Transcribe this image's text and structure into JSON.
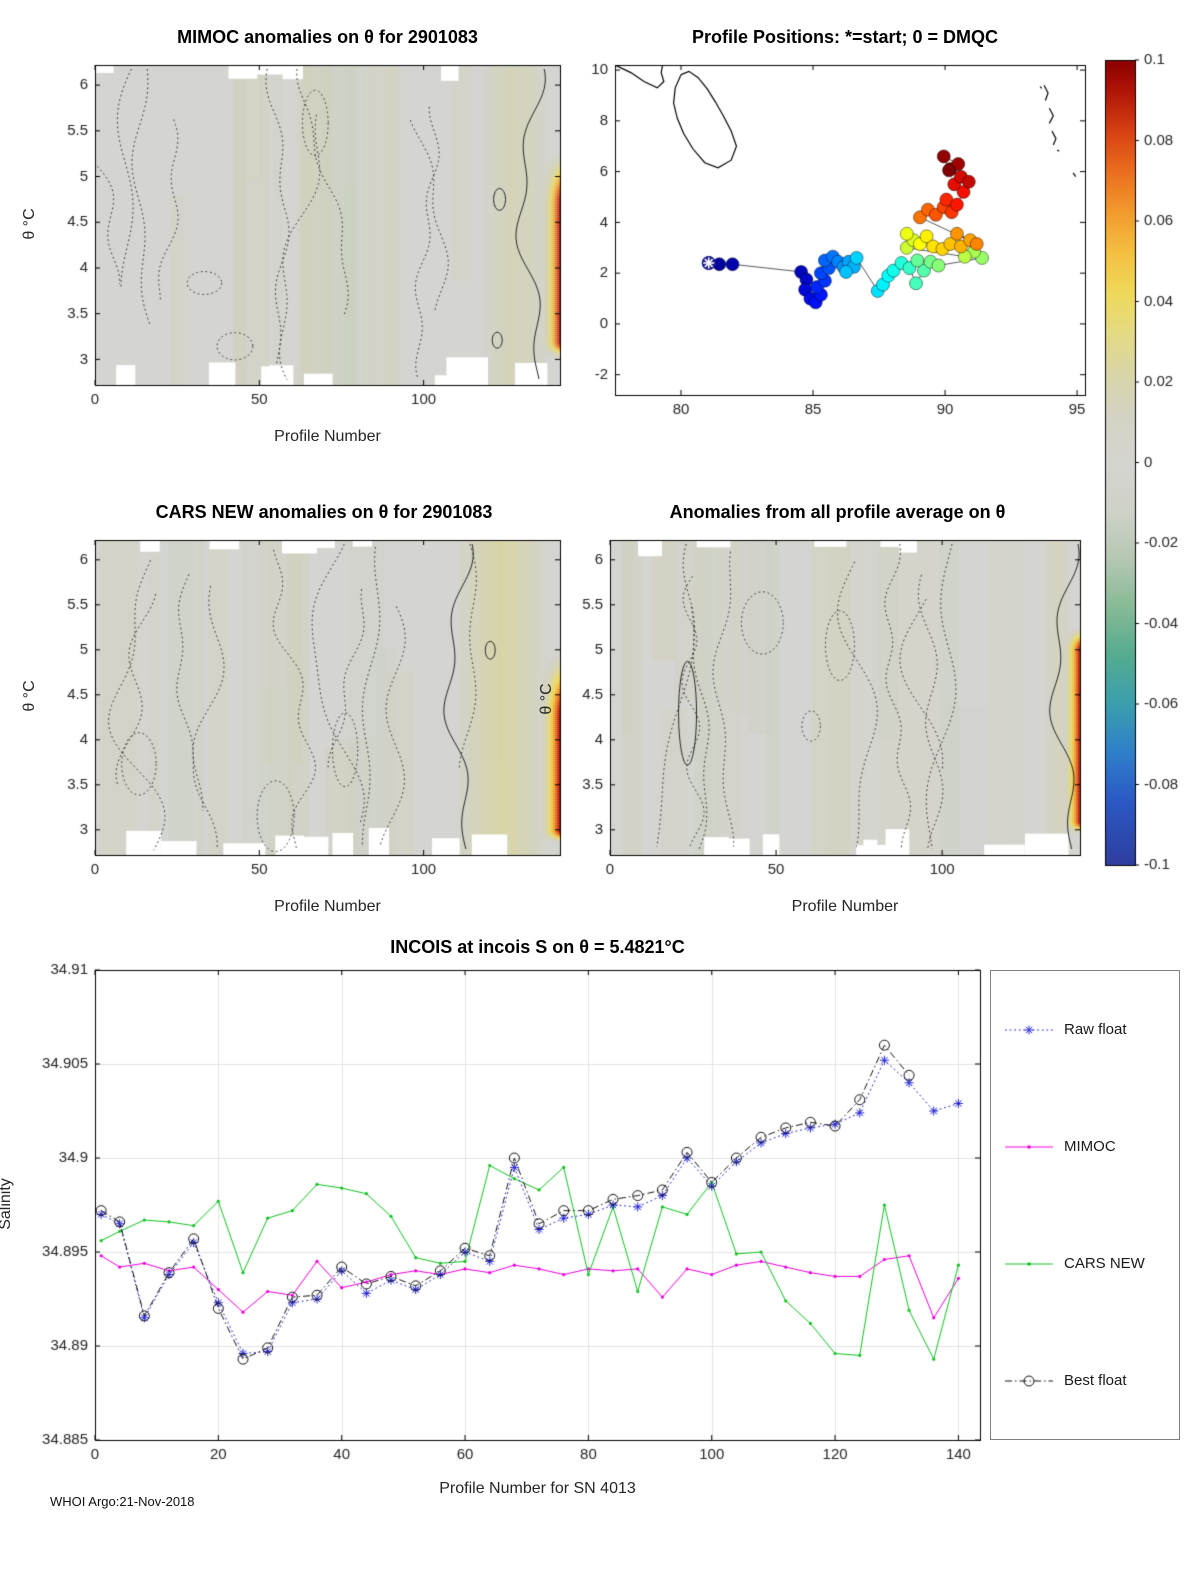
{
  "meta": {
    "footer": "WHOI Argo:21-Nov-2018"
  },
  "colorbar": {
    "min": -0.1,
    "max": 0.1,
    "tick_values": [
      0.1,
      0.08,
      0.06,
      0.04,
      0.02,
      0,
      -0.02,
      -0.04,
      -0.06,
      -0.08,
      -0.1
    ],
    "tick_labels": [
      "0.1",
      "0.08",
      "0.06",
      "0.04",
      "0.02",
      "0",
      "-0.02",
      "-0.04",
      "-0.06",
      "-0.08",
      "-0.1"
    ],
    "colormap_stops": [
      [
        0.0,
        "#2e3d9e"
      ],
      [
        0.08,
        "#2b59c4"
      ],
      [
        0.14,
        "#2f7fc9"
      ],
      [
        0.2,
        "#3a9fae"
      ],
      [
        0.26,
        "#54ab90"
      ],
      [
        0.32,
        "#86ba96"
      ],
      [
        0.38,
        "#b5c7b2"
      ],
      [
        0.44,
        "#cfd2c8"
      ],
      [
        0.5,
        "#d4d4d0"
      ],
      [
        0.56,
        "#d4d3c2"
      ],
      [
        0.61,
        "#d8d5a8"
      ],
      [
        0.66,
        "#e3da84"
      ],
      [
        0.71,
        "#efd95b"
      ],
      [
        0.76,
        "#f4c140"
      ],
      [
        0.81,
        "#f29c2d"
      ],
      [
        0.86,
        "#ea701f"
      ],
      [
        0.91,
        "#d84313"
      ],
      [
        0.96,
        "#b21607"
      ],
      [
        1.0,
        "#8c0000"
      ]
    ],
    "jet_stops": [
      [
        0,
        "#000090"
      ],
      [
        0.125,
        "#0010ff"
      ],
      [
        0.375,
        "#00ffff"
      ],
      [
        0.625,
        "#ffff00"
      ],
      [
        0.875,
        "#ff1000"
      ],
      [
        1,
        "#800000"
      ]
    ]
  },
  "panels": {
    "mimoc": {
      "title": "MIMOC anomalies on θ  for 2901083",
      "xlabel": "Profile Number",
      "ylabel": "θ °C",
      "xticks": [
        0,
        50,
        100
      ],
      "xtick_labels": [
        "0",
        "50",
        "100"
      ],
      "yticks": [
        3,
        3.5,
        4,
        4.5,
        5,
        5.5,
        6
      ],
      "ytick_labels": [
        "3",
        "3.5",
        "4",
        "4.5",
        "5",
        "5.5",
        "6"
      ],
      "x_range": [
        0,
        141.5
      ],
      "y_range": [
        2.72,
        6.22
      ]
    },
    "map": {
      "title": "Profile Positions: *=start; 0 = DMQC",
      "xticks": [
        80,
        85,
        90,
        95
      ],
      "xtick_labels": [
        "80",
        "85",
        "90",
        "95"
      ],
      "yticks": [
        -2,
        0,
        2,
        4,
        6,
        8,
        10
      ],
      "ytick_labels": [
        "-2",
        "0",
        "2",
        "4",
        "6",
        "8",
        "10"
      ],
      "x_range": [
        77.5,
        95.3
      ],
      "y_range": [
        -2.8,
        10.2
      ]
    },
    "cars": {
      "title": "CARS NEW anomalies on θ for 2901083",
      "xlabel": "Profile Number",
      "ylabel": "θ °C",
      "xticks": [
        0,
        50,
        100
      ],
      "xtick_labels": [
        "0",
        "50",
        "100"
      ],
      "yticks": [
        3,
        3.5,
        4,
        4.5,
        5,
        5.5,
        6
      ],
      "ytick_labels": [
        "3",
        "3.5",
        "4",
        "4.5",
        "5",
        "5.5",
        "6"
      ],
      "x_range": [
        0,
        141.5
      ],
      "y_range": [
        2.72,
        6.22
      ]
    },
    "avg": {
      "title": "Anomalies from all profile average on θ",
      "xlabel": "Profile Number",
      "ylabel": "θ °C",
      "xticks": [
        0,
        50,
        100
      ],
      "xtick_labels": [
        "0",
        "50",
        "100"
      ],
      "yticks": [
        3,
        3.5,
        4,
        4.5,
        5,
        5.5,
        6
      ],
      "ytick_labels": [
        "3",
        "3.5",
        "4",
        "4.5",
        "5",
        "5.5",
        "6"
      ],
      "x_range": [
        0,
        141.5
      ],
      "y_range": [
        2.72,
        6.22
      ]
    },
    "incois": {
      "title": "INCOIS at incois S on θ = 5.4821°C",
      "xlabel": "Profile Number for SN 4013",
      "ylabel": "Salinity",
      "xticks": [
        0,
        20,
        40,
        60,
        80,
        100,
        120,
        140
      ],
      "xtick_labels": [
        "0",
        "20",
        "40",
        "60",
        "80",
        "100",
        "120",
        "140"
      ],
      "yticks": [
        34.885,
        34.89,
        34.895,
        34.9,
        34.905,
        34.91
      ],
      "ytick_labels": [
        "34.885",
        "34.89",
        "34.895",
        "34.9",
        "34.905",
        "34.91"
      ],
      "x_range": [
        0,
        143.5
      ],
      "y_range": [
        34.885,
        34.91
      ]
    }
  },
  "chart_data": [
    {
      "id": "mimoc",
      "type": "heatmap",
      "title": "MIMOC anomalies on θ  for 2901083",
      "xlabel": "Profile Number",
      "ylabel": "θ °C",
      "x_range": [
        0,
        141.5
      ],
      "y_range": [
        2.72,
        6.22
      ],
      "value_range": [
        -0.1,
        0.1
      ],
      "background_value": 0,
      "features": {
        "warm_band": {
          "x0": 118,
          "x1": 137,
          "peak_value": 0.018
        },
        "stripe": {
          "x0": 137.5,
          "x1": 141.5,
          "y_core": [
            3.2,
            4.7
          ],
          "y_ext": [
            3.0,
            5.35
          ],
          "peak_value": 0.1
        }
      },
      "note": "anomaly field near 0 (gray) with dotted zero contours; strong positive anomaly (+0.1) at final profiles"
    },
    {
      "id": "map",
      "type": "scatter",
      "title": "Profile Positions: *=start; 0 = DMQC",
      "start": [
        81.05,
        2.4
      ],
      "points": [
        [
          81.05,
          2.4
        ],
        [
          81.45,
          2.35
        ],
        [
          81.95,
          2.35
        ],
        [
          84.55,
          2.05
        ],
        [
          84.75,
          1.75
        ],
        [
          84.7,
          1.35
        ],
        [
          84.9,
          1.0
        ],
        [
          85.1,
          0.85
        ],
        [
          85.3,
          1.15
        ],
        [
          85.15,
          1.45
        ],
        [
          85.45,
          1.7
        ],
        [
          85.3,
          2.0
        ],
        [
          85.6,
          2.2
        ],
        [
          85.45,
          2.5
        ],
        [
          85.75,
          2.65
        ],
        [
          85.95,
          2.45
        ],
        [
          86.15,
          2.25
        ],
        [
          86.35,
          2.45
        ],
        [
          86.55,
          2.25
        ],
        [
          86.25,
          2.05
        ],
        [
          86.65,
          2.6
        ],
        [
          87.45,
          1.3
        ],
        [
          87.65,
          1.55
        ],
        [
          87.85,
          1.9
        ],
        [
          88.05,
          2.1
        ],
        [
          88.35,
          2.4
        ],
        [
          88.65,
          2.2
        ],
        [
          88.9,
          1.6
        ],
        [
          89.2,
          2.1
        ],
        [
          88.95,
          2.5
        ],
        [
          89.45,
          2.45
        ],
        [
          89.75,
          2.3
        ],
        [
          91.4,
          2.6
        ],
        [
          91.1,
          2.85
        ],
        [
          90.75,
          2.65
        ],
        [
          88.55,
          3.0
        ],
        [
          88.8,
          3.3
        ],
        [
          88.55,
          3.55
        ],
        [
          89.05,
          3.15
        ],
        [
          89.3,
          3.45
        ],
        [
          89.55,
          3.05
        ],
        [
          89.9,
          2.95
        ],
        [
          90.2,
          3.15
        ],
        [
          90.6,
          3.05
        ],
        [
          90.95,
          3.3
        ],
        [
          90.45,
          3.55
        ],
        [
          91.2,
          3.15
        ],
        [
          89.05,
          4.2
        ],
        [
          89.35,
          4.5
        ],
        [
          89.65,
          4.3
        ],
        [
          89.95,
          4.6
        ],
        [
          90.25,
          4.4
        ],
        [
          90.05,
          4.9
        ],
        [
          90.45,
          4.7
        ],
        [
          90.7,
          5.2
        ],
        [
          90.35,
          5.5
        ],
        [
          90.6,
          5.8
        ],
        [
          90.9,
          5.6
        ],
        [
          90.2,
          6.1
        ],
        [
          90.5,
          6.3
        ],
        [
          89.95,
          6.6
        ],
        [
          90.15,
          6.05
        ]
      ],
      "coastlines": [
        [
          [
            77.5,
            10.2
          ],
          [
            78.1,
            9.9
          ],
          [
            78.6,
            9.55
          ],
          [
            79.1,
            9.3
          ],
          [
            79.35,
            9.55
          ],
          [
            79.25,
            9.9
          ],
          [
            79.3,
            10.2
          ]
        ],
        [
          [
            80.0,
            9.82
          ],
          [
            79.78,
            9.3
          ],
          [
            79.72,
            8.7
          ],
          [
            79.86,
            8.1
          ],
          [
            80.1,
            7.5
          ],
          [
            80.45,
            6.9
          ],
          [
            80.9,
            6.35
          ],
          [
            81.4,
            6.15
          ],
          [
            81.9,
            6.45
          ],
          [
            82.1,
            7.0
          ],
          [
            81.9,
            7.6
          ],
          [
            81.6,
            8.2
          ],
          [
            81.3,
            8.75
          ],
          [
            81.0,
            9.25
          ],
          [
            80.65,
            9.7
          ],
          [
            80.3,
            9.95
          ],
          [
            80.0,
            9.82
          ]
        ],
        [
          [
            93.75,
            9.4
          ],
          [
            93.9,
            9.1
          ],
          [
            93.8,
            8.8
          ]
        ],
        [
          [
            93.95,
            8.5
          ],
          [
            94.1,
            8.2
          ],
          [
            93.95,
            7.9
          ]
        ],
        [
          [
            94.05,
            7.6
          ],
          [
            94.2,
            7.3
          ],
          [
            94.1,
            7.05
          ]
        ],
        [
          [
            93.6,
            9.35
          ],
          [
            93.66,
            9.28
          ]
        ],
        [
          [
            94.25,
            6.85
          ],
          [
            94.32,
            6.8
          ]
        ],
        [
          [
            94.85,
            5.95
          ],
          [
            94.95,
            5.8
          ]
        ]
      ]
    },
    {
      "id": "cars",
      "type": "heatmap",
      "title": "CARS NEW anomalies on θ for 2901083",
      "xlabel": "Profile Number",
      "ylabel": "θ °C",
      "x_range": [
        0,
        141.5
      ],
      "y_range": [
        2.72,
        6.22
      ],
      "value_range": [
        -0.1,
        0.1
      ],
      "background_value": 0,
      "features": {
        "warm_band": {
          "x0": 110,
          "x1": 137,
          "peak_value": 0.026
        },
        "stripe": {
          "x0": 137,
          "x1": 141.5,
          "y_core": [
            3.0,
            4.25
          ],
          "y_ext": [
            2.85,
            5.1
          ],
          "peak_value": 0.1
        }
      },
      "note": "anomaly field near 0 (gray) with dotted zero contours; broad warm band near profiles 110-140 and strong positive anomaly at final profiles"
    },
    {
      "id": "avg",
      "type": "heatmap",
      "title": "Anomalies from all profile average on θ",
      "xlabel": "Profile Number",
      "ylabel": "θ °C",
      "x_range": [
        0,
        141.5
      ],
      "y_range": [
        2.72,
        6.22
      ],
      "value_range": [
        -0.1,
        0.1
      ],
      "background_value": 0,
      "features": {
        "warm_band": {
          "x0": 131,
          "x1": 138,
          "peak_value": 0.016
        },
        "stripe": {
          "x0": 138,
          "x1": 141.5,
          "y_core": [
            3.1,
            5.0
          ],
          "y_ext": [
            2.95,
            5.3
          ],
          "peak_value": 0.1
        }
      },
      "note": "anomaly field near 0 (gray) with dotted zero contours; strong positive anomaly at final profiles"
    },
    {
      "id": "incois",
      "type": "line",
      "title": "INCOIS at incois S on θ = 5.4821°C",
      "xlabel": "Profile Number for SN 4013",
      "ylabel": "Salinity",
      "xlim": [
        0,
        143.5
      ],
      "ylim": [
        34.885,
        34.91
      ],
      "x": [
        1,
        4,
        8,
        12,
        16,
        20,
        24,
        28,
        32,
        36,
        40,
        44,
        48,
        52,
        56,
        60,
        64,
        68,
        72,
        76,
        80,
        84,
        88,
        92,
        96,
        100,
        104,
        108,
        112,
        116,
        120,
        124,
        128,
        132,
        136,
        140
      ],
      "series": [
        {
          "name": "Raw float",
          "color": "#2424d6",
          "line": "dot",
          "marker": "asterisk",
          "values": [
            34.897,
            34.8965,
            34.8915,
            34.8938,
            34.8955,
            34.8923,
            34.8896,
            34.8897,
            34.8923,
            34.8925,
            34.894,
            34.8928,
            34.8935,
            34.893,
            34.8938,
            34.895,
            34.8945,
            34.8995,
            34.8962,
            34.8968,
            34.897,
            34.8975,
            34.8974,
            34.898,
            34.9,
            34.8985,
            34.8998,
            34.9008,
            34.9013,
            34.9016,
            34.9018,
            34.9024,
            34.9052,
            34.904,
            34.9025,
            34.9029
          ]
        },
        {
          "name": "MIMOC",
          "color": "#ee00dd",
          "line": "solid",
          "marker": "dot",
          "values": [
            34.8948,
            34.8942,
            34.8944,
            34.894,
            34.8942,
            34.893,
            34.8918,
            34.8929,
            34.8927,
            34.8945,
            34.8931,
            34.8934,
            34.8938,
            34.894,
            34.8938,
            34.8941,
            34.8939,
            34.8943,
            34.8941,
            34.8938,
            34.8941,
            34.894,
            34.8941,
            34.8926,
            34.8941,
            34.8938,
            34.8943,
            34.8945,
            34.8942,
            34.8939,
            34.8937,
            34.8937,
            34.8946,
            34.8948,
            34.8915,
            34.8936
          ]
        },
        {
          "name": "CARS NEW",
          "color": "#12c422",
          "line": "solid",
          "marker": "dot",
          "values": [
            34.8956,
            34.8961,
            34.8967,
            34.8966,
            34.8964,
            34.8977,
            34.8939,
            34.8968,
            34.8972,
            34.8986,
            34.8984,
            34.8981,
            34.8969,
            34.8947,
            34.8944,
            34.8945,
            34.8996,
            34.8989,
            34.8983,
            34.8995,
            34.8938,
            34.8974,
            34.8929,
            34.8974,
            34.897,
            34.8987,
            34.8949,
            34.895,
            34.8924,
            34.8912,
            34.8896,
            34.8895,
            34.8975,
            34.8919,
            34.8893,
            34.8943
          ]
        },
        {
          "name": "Best float",
          "color": "#141414",
          "line": "dashdot",
          "marker": "circle",
          "values": [
            34.8972,
            34.8966,
            34.8916,
            34.8939,
            34.8957,
            34.892,
            34.8893,
            34.8899,
            34.8926,
            34.8927,
            34.8942,
            34.8933,
            34.8937,
            34.8932,
            34.894,
            34.8952,
            34.8948,
            34.9,
            34.8965,
            34.8972,
            34.8972,
            34.8978,
            34.898,
            34.8983,
            34.9003,
            34.8987,
            34.9,
            34.9011,
            34.9016,
            34.9019,
            34.9017,
            34.9031,
            34.906,
            34.9044,
            null,
            null
          ]
        }
      ],
      "grid": true,
      "legend_position": "right-outside"
    }
  ],
  "legend": {
    "items": [
      {
        "label": "Raw float"
      },
      {
        "label": "MIMOC"
      },
      {
        "label": "CARS NEW"
      },
      {
        "label": "Best float"
      }
    ]
  }
}
